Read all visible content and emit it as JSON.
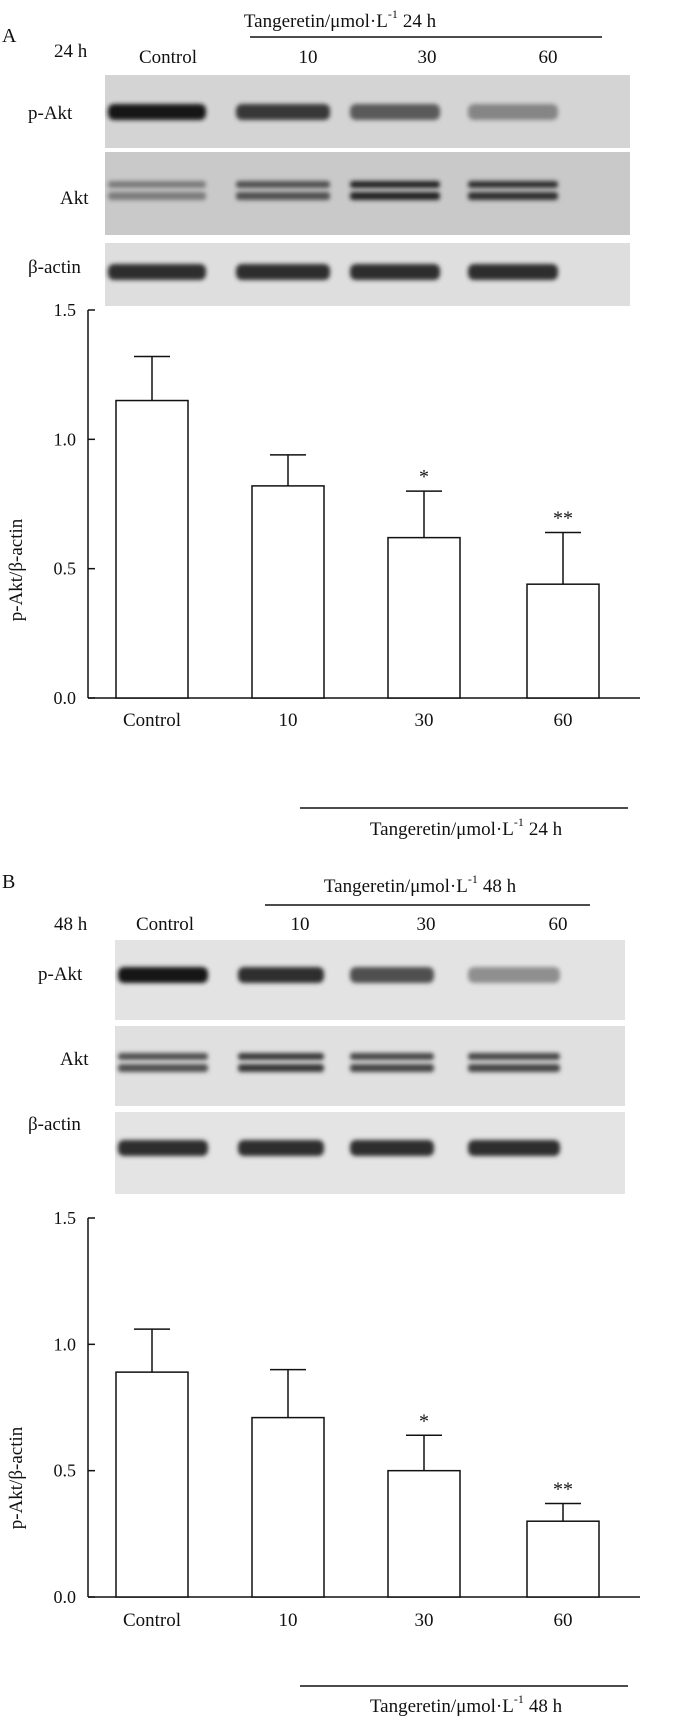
{
  "panels": [
    {
      "letter": "A",
      "time": "24 h",
      "treatment": {
        "label": "Tangeretin/μmol·L",
        "exp": "-1",
        "time": "24 h"
      },
      "lanes": [
        "Control",
        "10",
        "30",
        "60"
      ],
      "blot_labels": [
        "p-Akt",
        "Akt",
        "β-actin"
      ],
      "blot": {
        "pakt": [
          1.0,
          0.85,
          0.7,
          0.5
        ],
        "akt": [
          0.55,
          0.75,
          0.95,
          0.9
        ],
        "actin": [
          0.9,
          0.9,
          0.9,
          0.9
        ]
      }
    },
    {
      "letter": "B",
      "time": "48 h",
      "treatment": {
        "label": "Tangeretin/μmol·L",
        "exp": "-1",
        "time": "48 h"
      },
      "lanes": [
        "Control",
        "10",
        "30",
        "60"
      ],
      "blot_labels": [
        "p-Akt",
        "Akt",
        "β-actin"
      ],
      "blot": {
        "pakt": [
          1.0,
          0.9,
          0.75,
          0.45
        ],
        "akt": [
          0.75,
          0.85,
          0.8,
          0.8
        ],
        "actin": [
          0.9,
          0.9,
          0.9,
          0.9
        ]
      }
    }
  ],
  "chart_data": [
    {
      "type": "bar",
      "categories": [
        "Control",
        "10",
        "30",
        "60"
      ],
      "values": [
        1.15,
        0.82,
        0.62,
        0.44
      ],
      "error": [
        0.17,
        0.12,
        0.18,
        0.2
      ],
      "significance": [
        "",
        "",
        "*",
        "**"
      ],
      "ylabel": "p-Akt/β-actin",
      "ylim": [
        0,
        1.5
      ],
      "yticks": [
        "0.0",
        "0.5",
        "1.0",
        "1.5"
      ],
      "xgroup": {
        "label": "Tangeretin/μmol·L",
        "exp": "-1",
        "time": "24 h"
      }
    },
    {
      "type": "bar",
      "categories": [
        "Control",
        "10",
        "30",
        "60"
      ],
      "values": [
        0.89,
        0.71,
        0.5,
        0.3
      ],
      "error": [
        0.17,
        0.19,
        0.14,
        0.07
      ],
      "significance": [
        "",
        "",
        "*",
        "**"
      ],
      "ylabel": "p-Akt/β-actin",
      "ylim": [
        0,
        1.5
      ],
      "yticks": [
        "0.0",
        "0.5",
        "1.0",
        "1.5"
      ],
      "xgroup": {
        "label": "Tangeretin/μmol·L",
        "exp": "-1",
        "time": "48 h"
      }
    }
  ]
}
